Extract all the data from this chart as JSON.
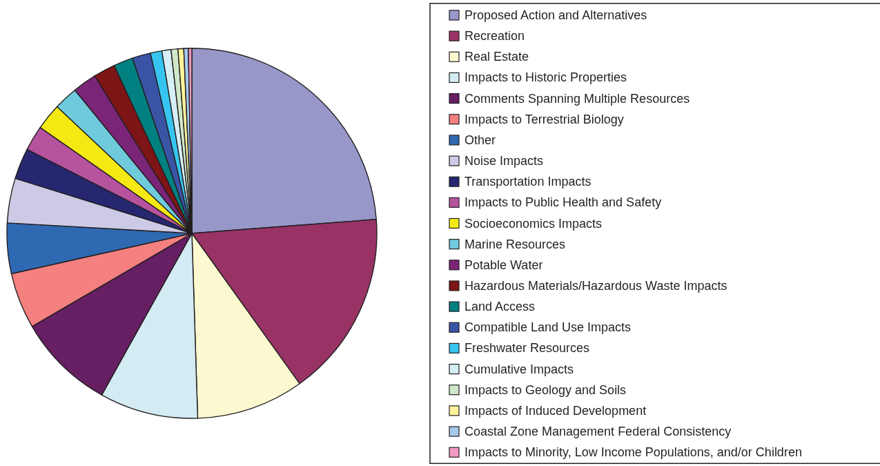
{
  "chart_data": {
    "type": "pie",
    "categories": [
      "Proposed Action and Alternatives",
      "Recreation",
      "Real Estate",
      "Impacts to Historic Properties",
      "Comments Spanning Multiple Resources",
      "Impacts to Terrestrial Biology",
      "Other",
      "Noise Impacts",
      "Transportation Impacts",
      "Impacts to Public Health and Safety",
      "Socioeconomics Impacts",
      "Marine Resources",
      "Potable Water",
      "Hazardous Materials/Hazardous Waste Impacts",
      "Land Access",
      "Compatible Land Use Impacts",
      "Freshwater Resources",
      "Cumulative Impacts",
      "Impacts to Geology and Soils",
      "Impacts of Induced Development",
      "Coastal Zone Management Federal Consistency",
      "Impacts to Minority, Low Income Populations, and/or Children"
    ],
    "values": [
      23.8,
      16.3,
      9.4,
      8.6,
      8.5,
      4.9,
      4.4,
      3.9,
      2.7,
      2.2,
      2.3,
      2.1,
      2.1,
      1.9,
      1.7,
      1.6,
      1.0,
      0.8,
      0.6,
      0.5,
      0.4,
      0.3
    ],
    "colors": [
      "#9797c9",
      "#993366",
      "#fcf8d0",
      "#d3ebf3",
      "#651f62",
      "#f48080",
      "#2f69b1",
      "#cdcae6",
      "#262770",
      "#b5539f",
      "#f5e914",
      "#6fcadc",
      "#7b2579",
      "#7d1416",
      "#008080",
      "#3954a5",
      "#36c5f0",
      "#d6eef5",
      "#cfe8c9",
      "#fdf39a",
      "#a6c8eb",
      "#f29ac2"
    ],
    "legend": "right"
  }
}
